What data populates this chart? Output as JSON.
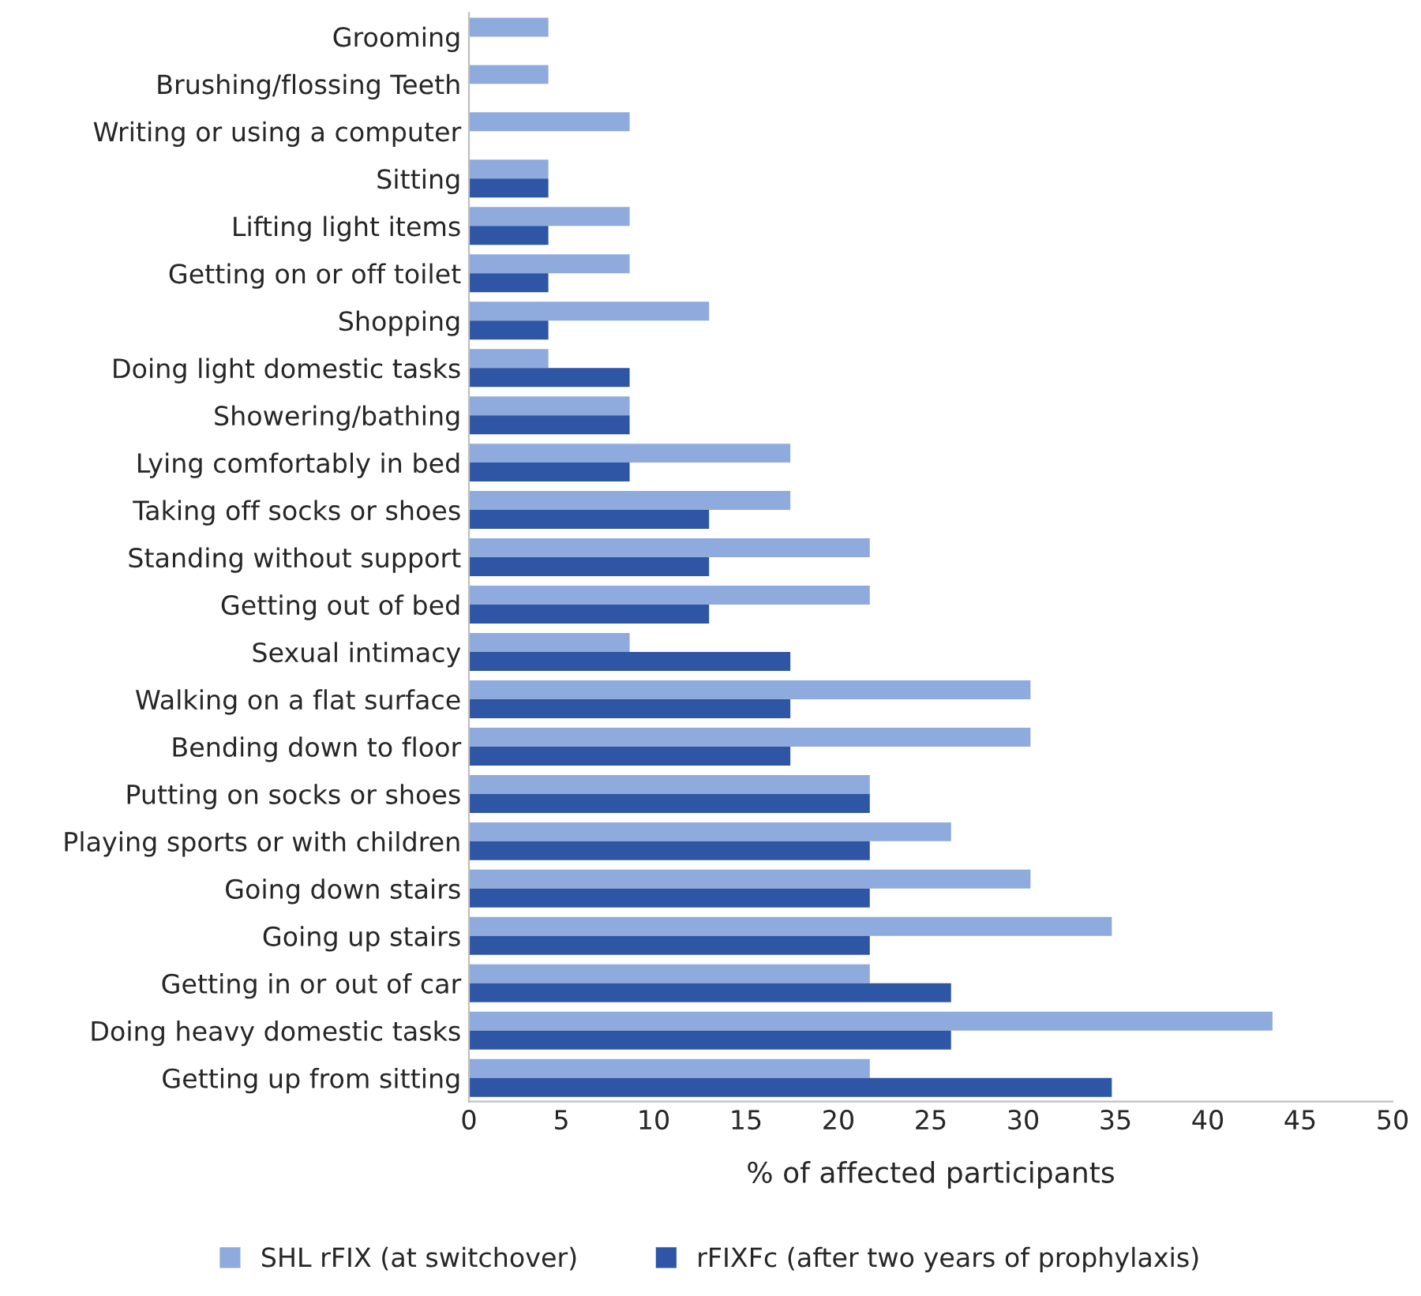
{
  "chart_data": {
    "type": "bar",
    "orientation": "horizontal",
    "xlabel": "% of affected participants",
    "categories": [
      "Grooming",
      "Brushing/flossing Teeth",
      "Writing or using a computer",
      "Sitting",
      "Lifting light items",
      "Getting on or off toilet",
      "Shopping",
      "Doing light domestic tasks",
      "Showering/bathing",
      "Lying comfortably in bed",
      "Taking off socks or shoes",
      "Standing without support",
      "Getting out of bed",
      "Sexual intimacy",
      "Walking on a flat surface",
      "Bending down to floor",
      "Putting on socks or shoes",
      "Playing sports or with children",
      "Going down stairs",
      "Going up stairs",
      "Getting in or out of car",
      "Doing heavy domestic tasks",
      "Getting up from sitting"
    ],
    "series": [
      {
        "name": "SHL rFIX (at switchover)",
        "color": "#8faadc",
        "values": [
          4.3,
          4.3,
          8.7,
          4.3,
          8.7,
          8.7,
          13.0,
          4.3,
          8.7,
          17.4,
          17.4,
          21.7,
          21.7,
          8.7,
          30.4,
          30.4,
          21.7,
          26.1,
          30.4,
          34.8,
          21.7,
          43.5,
          21.7
        ]
      },
      {
        "name": "rFIXFc (after two years of prophylaxis)",
        "color": "#2f55a5",
        "values": [
          null,
          null,
          null,
          4.3,
          4.3,
          4.3,
          4.3,
          8.7,
          8.7,
          8.7,
          13.0,
          13.0,
          13.0,
          17.4,
          17.4,
          17.4,
          21.7,
          21.7,
          21.7,
          21.7,
          26.1,
          26.1,
          34.8
        ]
      }
    ],
    "xlim": [
      0,
      50
    ],
    "xticks": [
      0,
      5,
      10,
      15,
      20,
      25,
      30,
      35,
      40,
      45,
      50
    ],
    "grid": false,
    "legend": "bottom"
  }
}
